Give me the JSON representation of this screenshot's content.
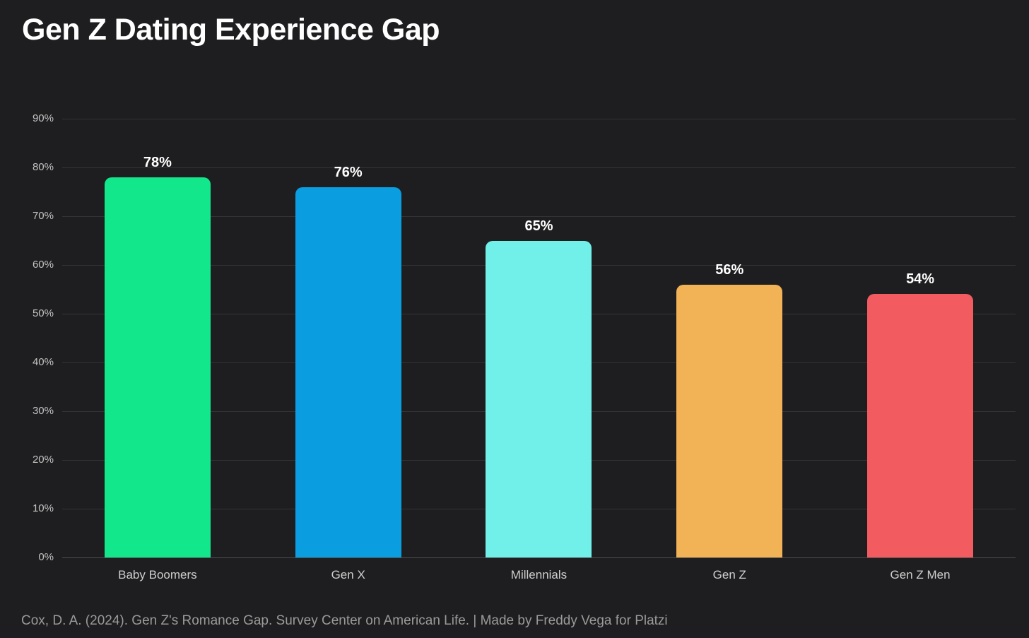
{
  "title": "Gen Z Dating Experience Gap",
  "footer": "Cox, D. A. (2024). Gen Z's Romance Gap. Survey Center on American Life. | Made by Freddy Vega for Platzi",
  "theme": {
    "background": "#1e1e20",
    "grid_color": "#343436",
    "zero_line_color": "#4e4e50",
    "tick_label_color": "#c3c3c3",
    "x_label_color": "#cfcfcf",
    "value_label_color": "#ffffff",
    "footer_color": "#9a9a9a",
    "title_color": "#ffffff"
  },
  "chart_data": {
    "type": "bar",
    "title": "Gen Z Dating Experience Gap",
    "categories": [
      "Baby Boomers",
      "Gen X",
      "Millennials",
      "Gen Z",
      "Gen Z Men"
    ],
    "values": [
      78,
      76,
      65,
      56,
      54
    ],
    "value_labels": [
      "78%",
      "76%",
      "65%",
      "56%",
      "54%"
    ],
    "bar_colors": [
      "#13e78b",
      "#0a9de0",
      "#71f0ea",
      "#f2b256",
      "#f25c60"
    ],
    "xlabel": "",
    "ylabel": "",
    "ylim": [
      0,
      90
    ],
    "yticks": [
      90,
      80,
      70,
      60,
      50,
      40,
      30,
      20,
      10,
      0
    ],
    "ytick_labels": [
      "90%",
      "80%",
      "70%",
      "60%",
      "50%",
      "40%",
      "30%",
      "20%",
      "10%",
      "0%"
    ],
    "grid": true,
    "legend": false
  }
}
